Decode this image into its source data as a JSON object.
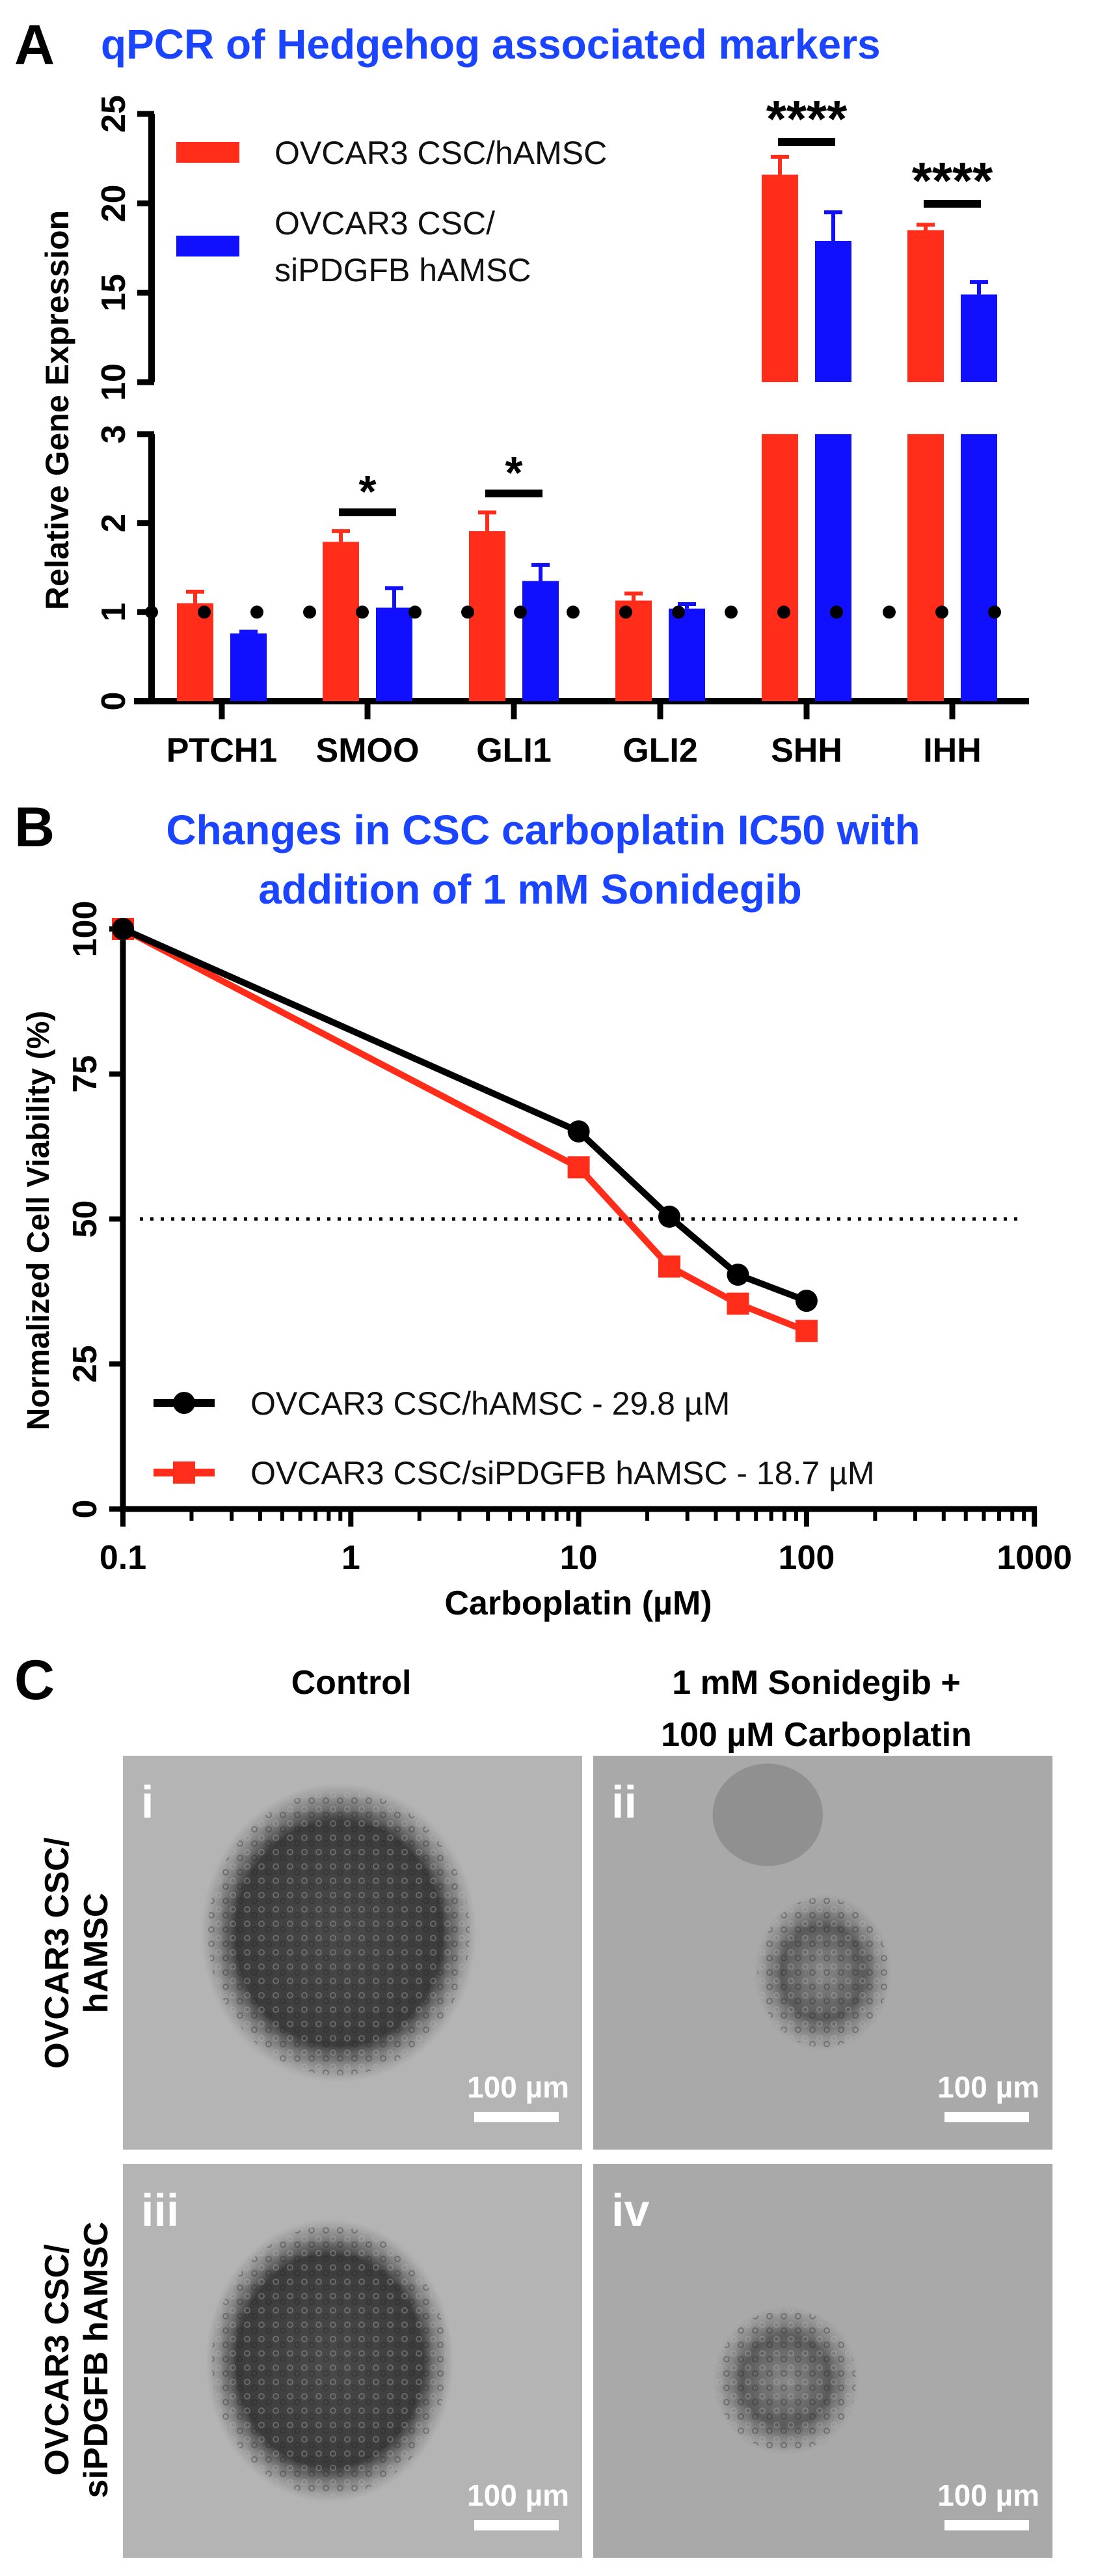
{
  "panel_a": {
    "label": "A",
    "chart_data": {
      "type": "bar",
      "title": "qPCR of Hedgehog associated markers",
      "ylabel": "Relative Gene Expression",
      "xlabel": "",
      "categories": [
        "PTCH1",
        "SMOO",
        "GLI1",
        "GLI2",
        "SHH",
        "IHH"
      ],
      "y_axis_break": {
        "lower": [
          0,
          3
        ],
        "upper": [
          10,
          25
        ]
      },
      "lower_ticks": [
        "0",
        "1",
        "2",
        "3"
      ],
      "upper_ticks": [
        "10",
        "15",
        "20",
        "25"
      ],
      "reference_line": 1,
      "series": [
        {
          "name": "OVCAR3 CSC/hAMSC",
          "legend_lines": [
            "OVCAR3 CSC/hAMSC"
          ],
          "color": "#ff2d1a",
          "values": [
            1.1,
            1.79,
            1.91,
            1.13,
            21.6,
            18.5
          ],
          "errors": [
            0.13,
            0.12,
            0.21,
            0.08,
            1.0,
            0.3
          ]
        },
        {
          "name": "OVCAR3 CSC/siPDGFB hAMSC",
          "legend_lines": [
            "OVCAR3 CSC/",
            "siPDGFB hAMSC"
          ],
          "color": "#1010ff",
          "values": [
            0.76,
            1.05,
            1.35,
            1.04,
            17.9,
            14.9
          ],
          "errors": [
            0.02,
            0.22,
            0.18,
            0.05,
            1.6,
            0.7
          ]
        }
      ],
      "significance": [
        {
          "category": "SMOO",
          "label": "*"
        },
        {
          "category": "GLI1",
          "label": "*"
        },
        {
          "category": "SHH",
          "label": "****"
        },
        {
          "category": "IHH",
          "label": "****"
        }
      ]
    }
  },
  "panel_b": {
    "label": "B",
    "chart_data": {
      "type": "line",
      "title": [
        "Changes in CSC carboplatin IC50 with",
        "addition of 1 mM Sonidegib"
      ],
      "xlabel": "Carboplatin (µM)",
      "ylabel": "Normalized Cell Viability (%)",
      "xscale": "log",
      "xlim": [
        0.1,
        1000
      ],
      "ylim": [
        0,
        100
      ],
      "x_ticks": [
        "0.1",
        "1",
        "10",
        "100",
        "1000"
      ],
      "y_ticks": [
        "0",
        "25",
        "50",
        "75",
        "100"
      ],
      "reference_line": 50,
      "x": [
        0.1,
        10,
        25,
        50,
        100
      ],
      "series": [
        {
          "name": "OVCAR3 CSC/hAMSC - 29.8 µM",
          "color": "#000000",
          "marker": "circle",
          "values": [
            100,
            65.1,
            50.4,
            40.4,
            35.9
          ]
        },
        {
          "name": "OVCAR3 CSC/siPDGFB hAMSC - 18.7 µM",
          "color": "#ff2d1a",
          "marker": "square",
          "values": [
            100,
            58.9,
            41.8,
            35.4,
            30.7
          ]
        }
      ]
    }
  },
  "panel_c": {
    "label": "C",
    "col_headers": [
      "Control",
      "1 mM Sonidegib +",
      "100 µM Carboplatin"
    ],
    "row_headers": [
      [
        "OVCAR3 CSC/",
        "hAMSC"
      ],
      [
        "OVCAR3 CSC/",
        "siPDGFB hAMSC"
      ]
    ],
    "images": [
      {
        "label": "i",
        "scale_bar": "100 µm"
      },
      {
        "label": "ii",
        "scale_bar": "100 µm"
      },
      {
        "label": "iii",
        "scale_bar": "100 µm"
      },
      {
        "label": "iv",
        "scale_bar": "100 µm"
      }
    ]
  }
}
